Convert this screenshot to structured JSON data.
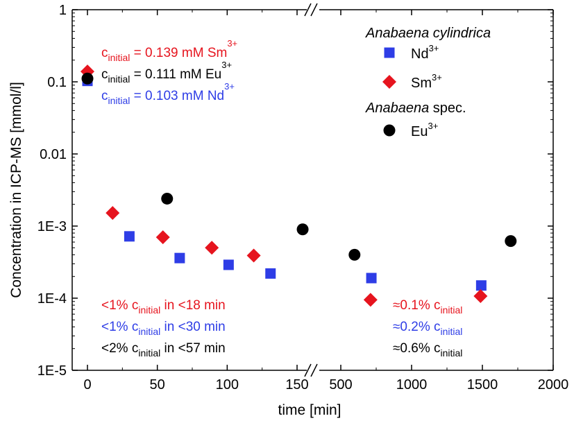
{
  "chart_data": {
    "type": "scatter",
    "xlabel": "time [min]",
    "ylabel": "Concentration in ICP-MS [mmol/l]",
    "y_scale": "log",
    "ylim": [
      1e-05,
      1
    ],
    "y_ticks": [
      "1E-5",
      "1E-4",
      "1E-3",
      "0.01",
      "0.1",
      "1"
    ],
    "x_broken_axis": true,
    "x_segments": [
      {
        "xlim": [
          -5,
          165
        ],
        "ticks": [
          "0",
          "50",
          "100",
          "150"
        ]
      },
      {
        "xlim": [
          390,
          2000
        ],
        "ticks": [
          "500",
          "1000",
          "1500",
          "2000"
        ]
      }
    ],
    "legend": {
      "placement": "top-right",
      "groups": [
        {
          "heading": "Anabaena cylindrica",
          "entries": [
            "Nd",
            "Sm"
          ]
        },
        {
          "heading_italic": "Anabaena",
          "heading_rest": " spec.",
          "entries": [
            "Eu"
          ]
        }
      ]
    },
    "series": [
      {
        "name": "Nd",
        "sup": "3+",
        "color": "#2e3de6",
        "marker": "square",
        "points": [
          [
            0,
            0.103
          ],
          [
            30,
            0.00072
          ],
          [
            66,
            0.00036
          ],
          [
            101,
            0.00029
          ],
          [
            131,
            0.00022
          ],
          [
            716,
            0.00019
          ],
          [
            1492,
            0.00015
          ]
        ]
      },
      {
        "name": "Sm",
        "sup": "3+",
        "color": "#e6141e",
        "marker": "diamond",
        "points": [
          [
            0,
            0.139
          ],
          [
            18,
            0.00152
          ],
          [
            54,
            0.0007
          ],
          [
            89,
            0.0005
          ],
          [
            119,
            0.00039
          ],
          [
            710,
            9.5e-05
          ],
          [
            1487,
            0.000107
          ]
        ]
      },
      {
        "name": "Eu",
        "sup": "3+",
        "color": "#000000",
        "marker": "circle",
        "points": [
          [
            0,
            0.111
          ],
          [
            57,
            0.0024
          ],
          [
            154,
            0.0009
          ],
          [
            597,
            0.0004
          ],
          [
            1700,
            0.00062
          ]
        ]
      }
    ],
    "annotations": {
      "initial": [
        {
          "color": "#e6141e",
          "c": "c",
          "sub": "initial",
          "rest": " = 0.139 mM Sm",
          "sup": "3+"
        },
        {
          "color": "#000000",
          "c": "c",
          "sub": "initial",
          "rest": " = 0.111 mM Eu",
          "sup": "3+"
        },
        {
          "color": "#2e3de6",
          "c": "c",
          "sub": "initial",
          "rest": " = 0.103 mM Nd",
          "sup": "3+"
        }
      ],
      "early": [
        {
          "color": "#e6141e",
          "pre": "<1% c",
          "sub": "initial",
          "post": " in <18 min"
        },
        {
          "color": "#2e3de6",
          "pre": "<1% c",
          "sub": "initial",
          "post": " in <30 min"
        },
        {
          "color": "#000000",
          "pre": "<2% c",
          "sub": "initial",
          "post": " in <57 min"
        }
      ],
      "late": [
        {
          "color": "#e6141e",
          "pre": "≈0.1% c",
          "sub": "initial"
        },
        {
          "color": "#2e3de6",
          "pre": "≈0.2% c",
          "sub": "initial"
        },
        {
          "color": "#000000",
          "pre": "≈0.6% c",
          "sub": "initial"
        }
      ]
    }
  }
}
